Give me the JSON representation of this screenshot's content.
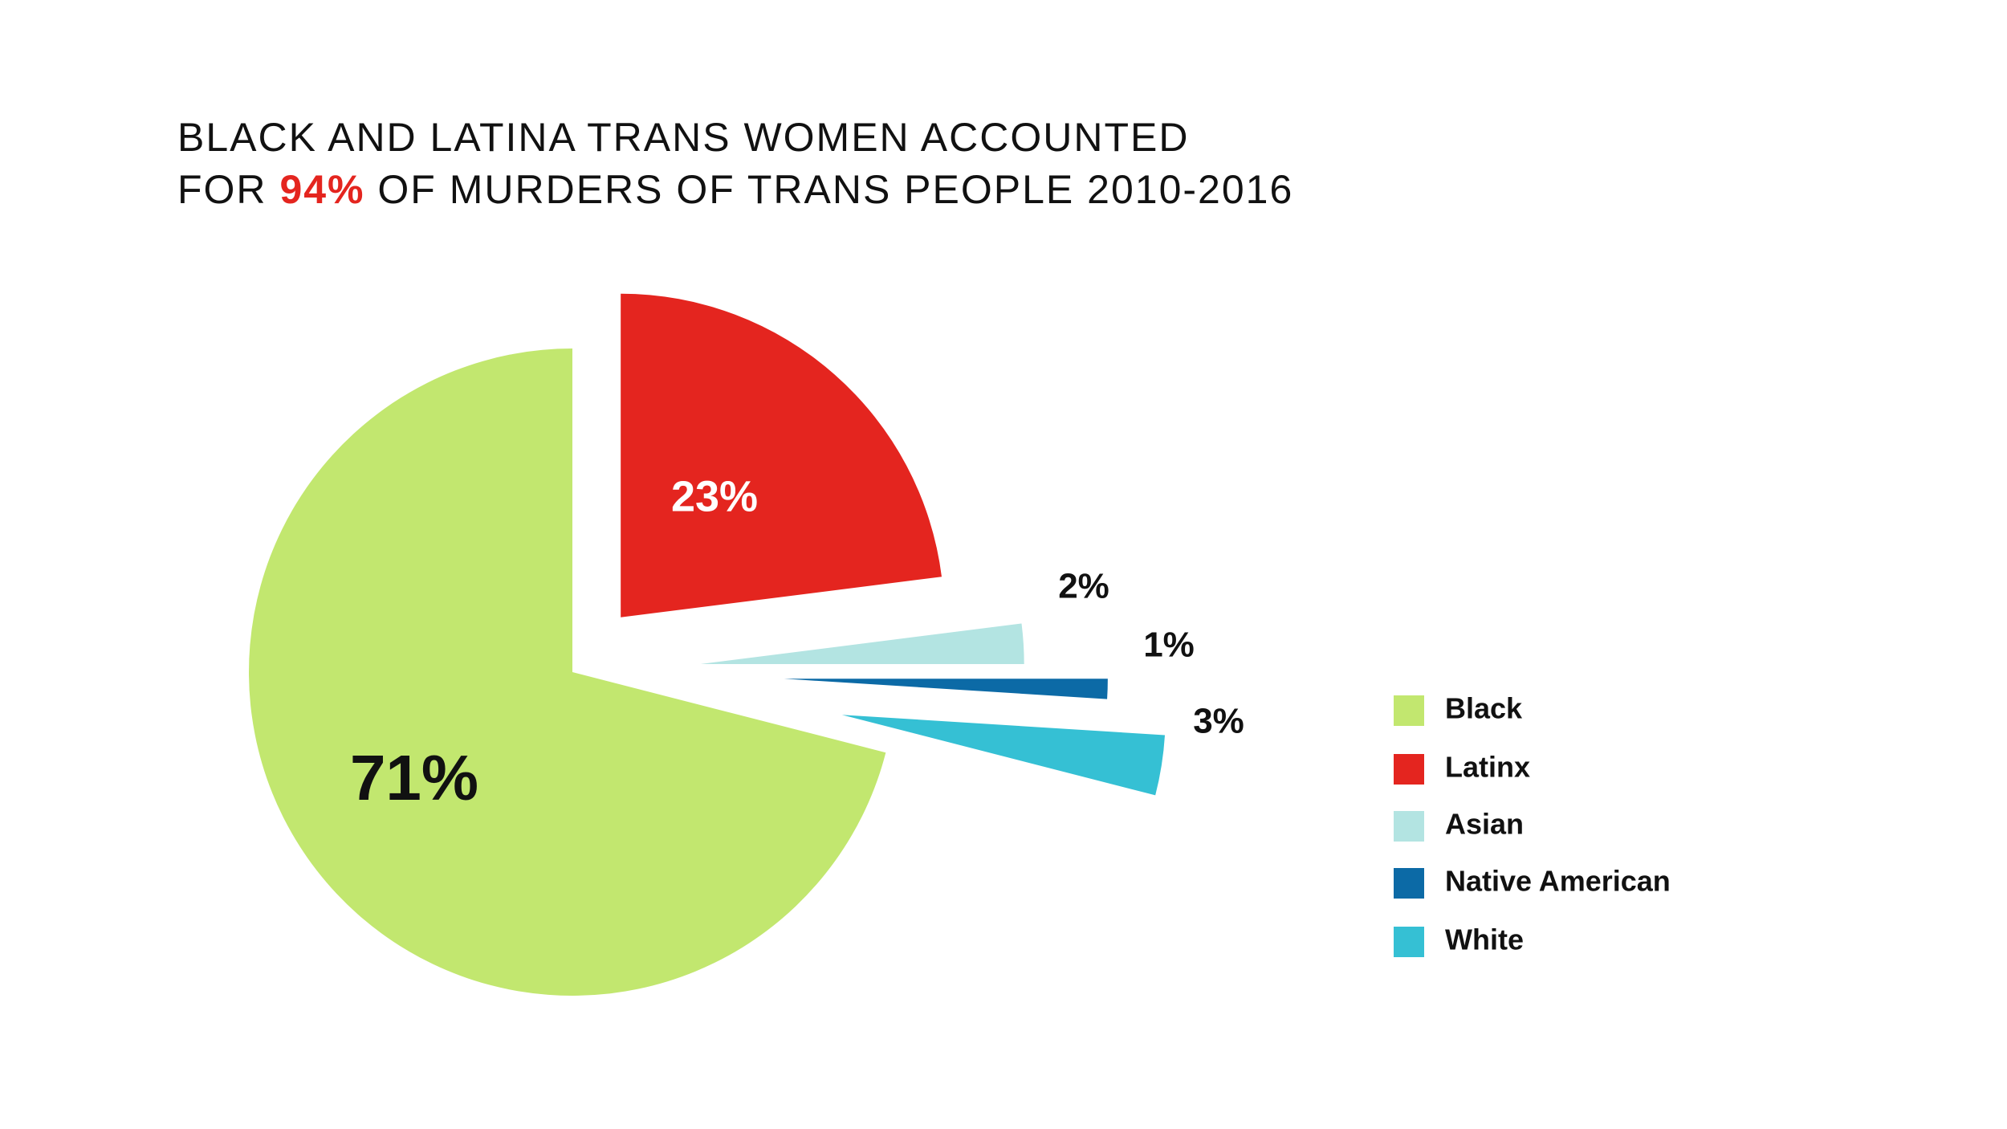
{
  "chart_data": {
    "type": "pie",
    "title_parts": [
      "BLACK AND LATINA TRANS WOMEN ACCOUNTED",
      "FOR ",
      "94%",
      " OF MURDERS OF TRANS PEOPLE 2010-2016"
    ],
    "title_highlight_color": "#e4251f",
    "categories": [
      "Black",
      "Latinx",
      "Asian",
      "Native American",
      "White"
    ],
    "values": [
      71,
      23,
      2,
      1,
      3
    ],
    "value_labels": [
      "71%",
      "23%",
      "2%",
      "1%",
      "3%"
    ],
    "colors": [
      "#c2e76f",
      "#e4251f",
      "#b3e4e2",
      "#0c6aa6",
      "#35c0d4"
    ],
    "legend": "right"
  }
}
